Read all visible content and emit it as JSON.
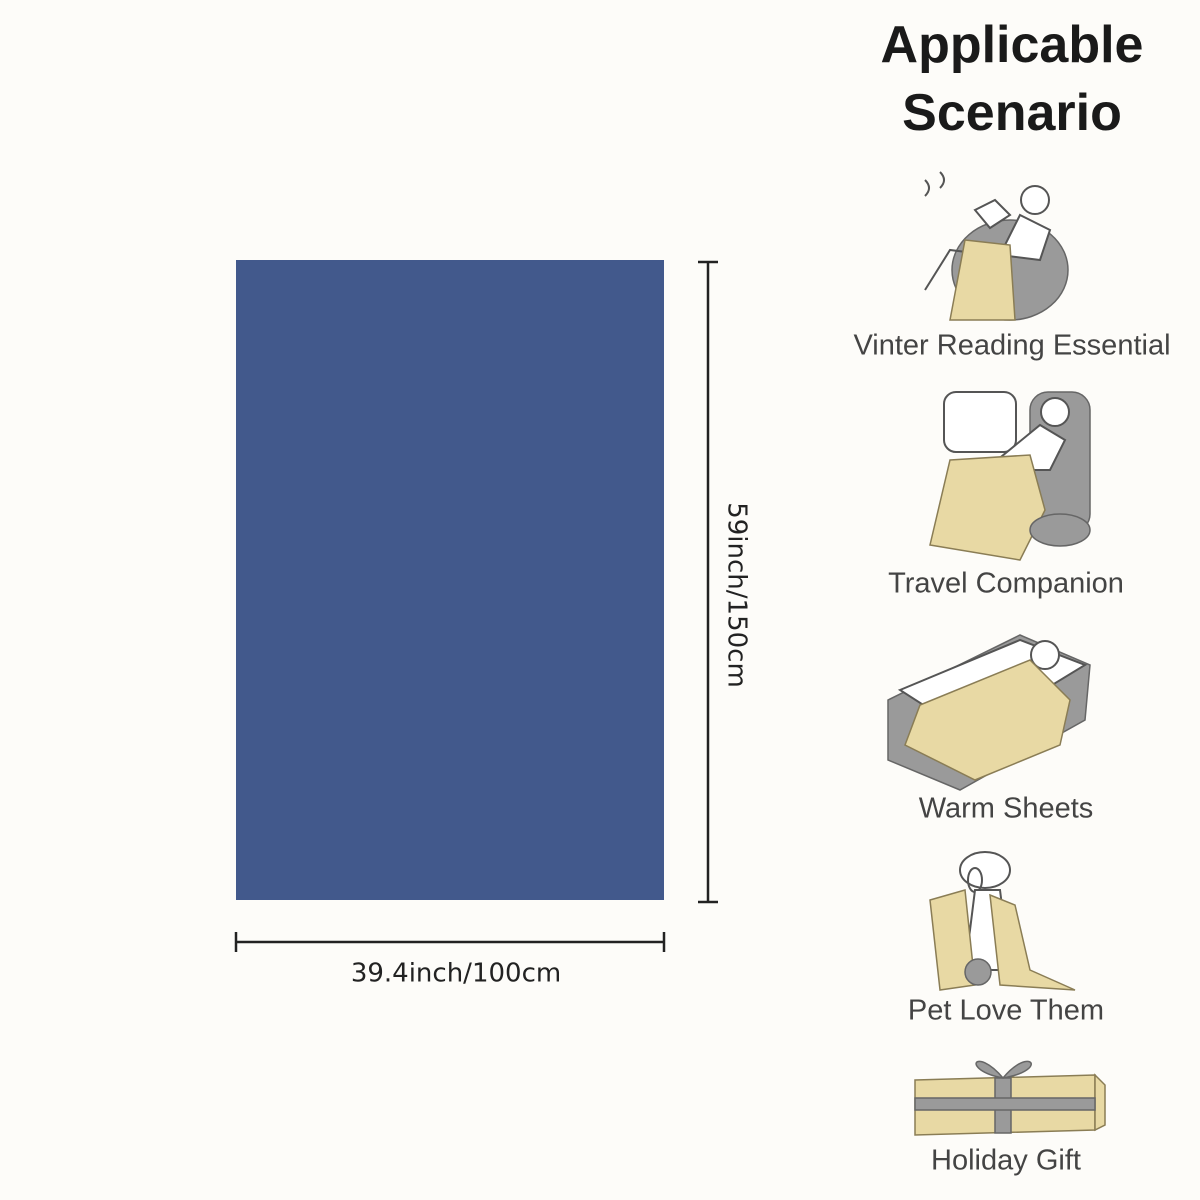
{
  "header": {
    "title": [
      "Applicable",
      "Scenario"
    ]
  },
  "dimensions": {
    "height": "59inch/150cm",
    "width": "39.4inch/100cm"
  },
  "scenarios": [
    "Vinter Reading Essential",
    "Travel Companion",
    "Warm Sheets",
    "Pet Love Them",
    "Holiday Gift"
  ]
}
